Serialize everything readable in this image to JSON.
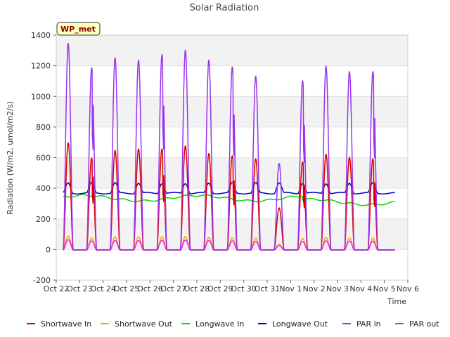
{
  "chart_data": {
    "type": "line",
    "title": "Solar Radiation",
    "xlabel": "Time",
    "ylabel": "Radiation (W/m2, umol/m2/s)",
    "badge": "WP_met",
    "ylim": [
      -200,
      1400
    ],
    "yticks": [
      -200,
      0,
      200,
      400,
      600,
      800,
      1000,
      1200,
      1400
    ],
    "xlim": [
      0,
      15
    ],
    "xticks": [
      {
        "value": 0,
        "label": "Oct 22"
      },
      {
        "value": 1,
        "label": "Oct 23"
      },
      {
        "value": 2,
        "label": "Oct 24"
      },
      {
        "value": 3,
        "label": "Oct 25"
      },
      {
        "value": 4,
        "label": "Oct 26"
      },
      {
        "value": 5,
        "label": "Oct 27"
      },
      {
        "value": 6,
        "label": "Oct 28"
      },
      {
        "value": 7,
        "label": "Oct 29"
      },
      {
        "value": 8,
        "label": "Oct 30"
      },
      {
        "value": 9,
        "label": "Oct 31"
      },
      {
        "value": 10,
        "label": "Nov 1"
      },
      {
        "value": 11,
        "label": "Nov 2"
      },
      {
        "value": 12,
        "label": "Nov 3"
      },
      {
        "value": 13,
        "label": "Nov 4"
      },
      {
        "value": 14,
        "label": "Nov 5"
      },
      {
        "value": 15,
        "label": "Nov 6"
      }
    ],
    "grid": "horizontal bands",
    "legend_position": "bottom",
    "data_start": 0.3,
    "data_end": 14.45,
    "daily_peaks": [
      {
        "day": 0,
        "par": 1350,
        "sw": 700
      },
      {
        "day": 1,
        "par": 1190,
        "sw": 600
      },
      {
        "day": 2,
        "par": 1255,
        "sw": 650
      },
      {
        "day": 3,
        "par": 1240,
        "sw": 660
      },
      {
        "day": 4,
        "par": 1275,
        "sw": 660
      },
      {
        "day": 5,
        "par": 1305,
        "sw": 680
      },
      {
        "day": 6,
        "par": 1240,
        "sw": 630
      },
      {
        "day": 7,
        "par": 1195,
        "sw": 615
      },
      {
        "day": 8,
        "par": 1135,
        "sw": 595
      },
      {
        "day": 9,
        "par": 565,
        "sw": 275
      },
      {
        "day": 10,
        "par": 1105,
        "sw": 575
      },
      {
        "day": 11,
        "par": 1200,
        "sw": 625
      },
      {
        "day": 12,
        "par": 1165,
        "sw": 605
      },
      {
        "day": 13,
        "par": 1165,
        "sw": 595
      }
    ],
    "series": [
      {
        "name": "Shortwave In",
        "color": "#dd0000"
      },
      {
        "name": "Shortwave Out",
        "color": "#ffa500"
      },
      {
        "name": "Longwave In",
        "color": "#00dd00"
      },
      {
        "name": "Longwave Out",
        "color": "#0000cc"
      },
      {
        "name": "PAR in",
        "color": "#9933ee"
      },
      {
        "name": "PAR out",
        "color": "#ee22ee"
      }
    ]
  }
}
